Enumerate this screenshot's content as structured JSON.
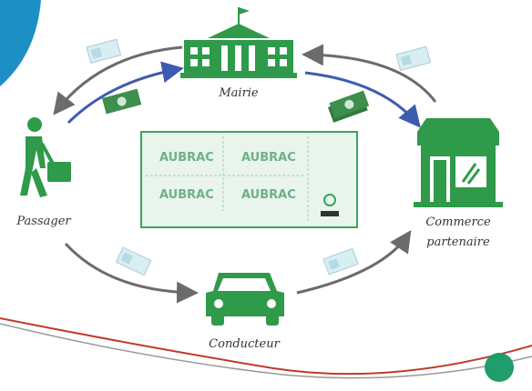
{
  "nodes": [
    {
      "label": "Mairie"
    },
    {
      "label": "Passager"
    },
    {
      "label": [
        "Commerce",
        "partenaire"
      ]
    },
    {
      "label": "Conducteur"
    }
  ],
  "ticket": {
    "brand": "AUBRAC"
  }
}
